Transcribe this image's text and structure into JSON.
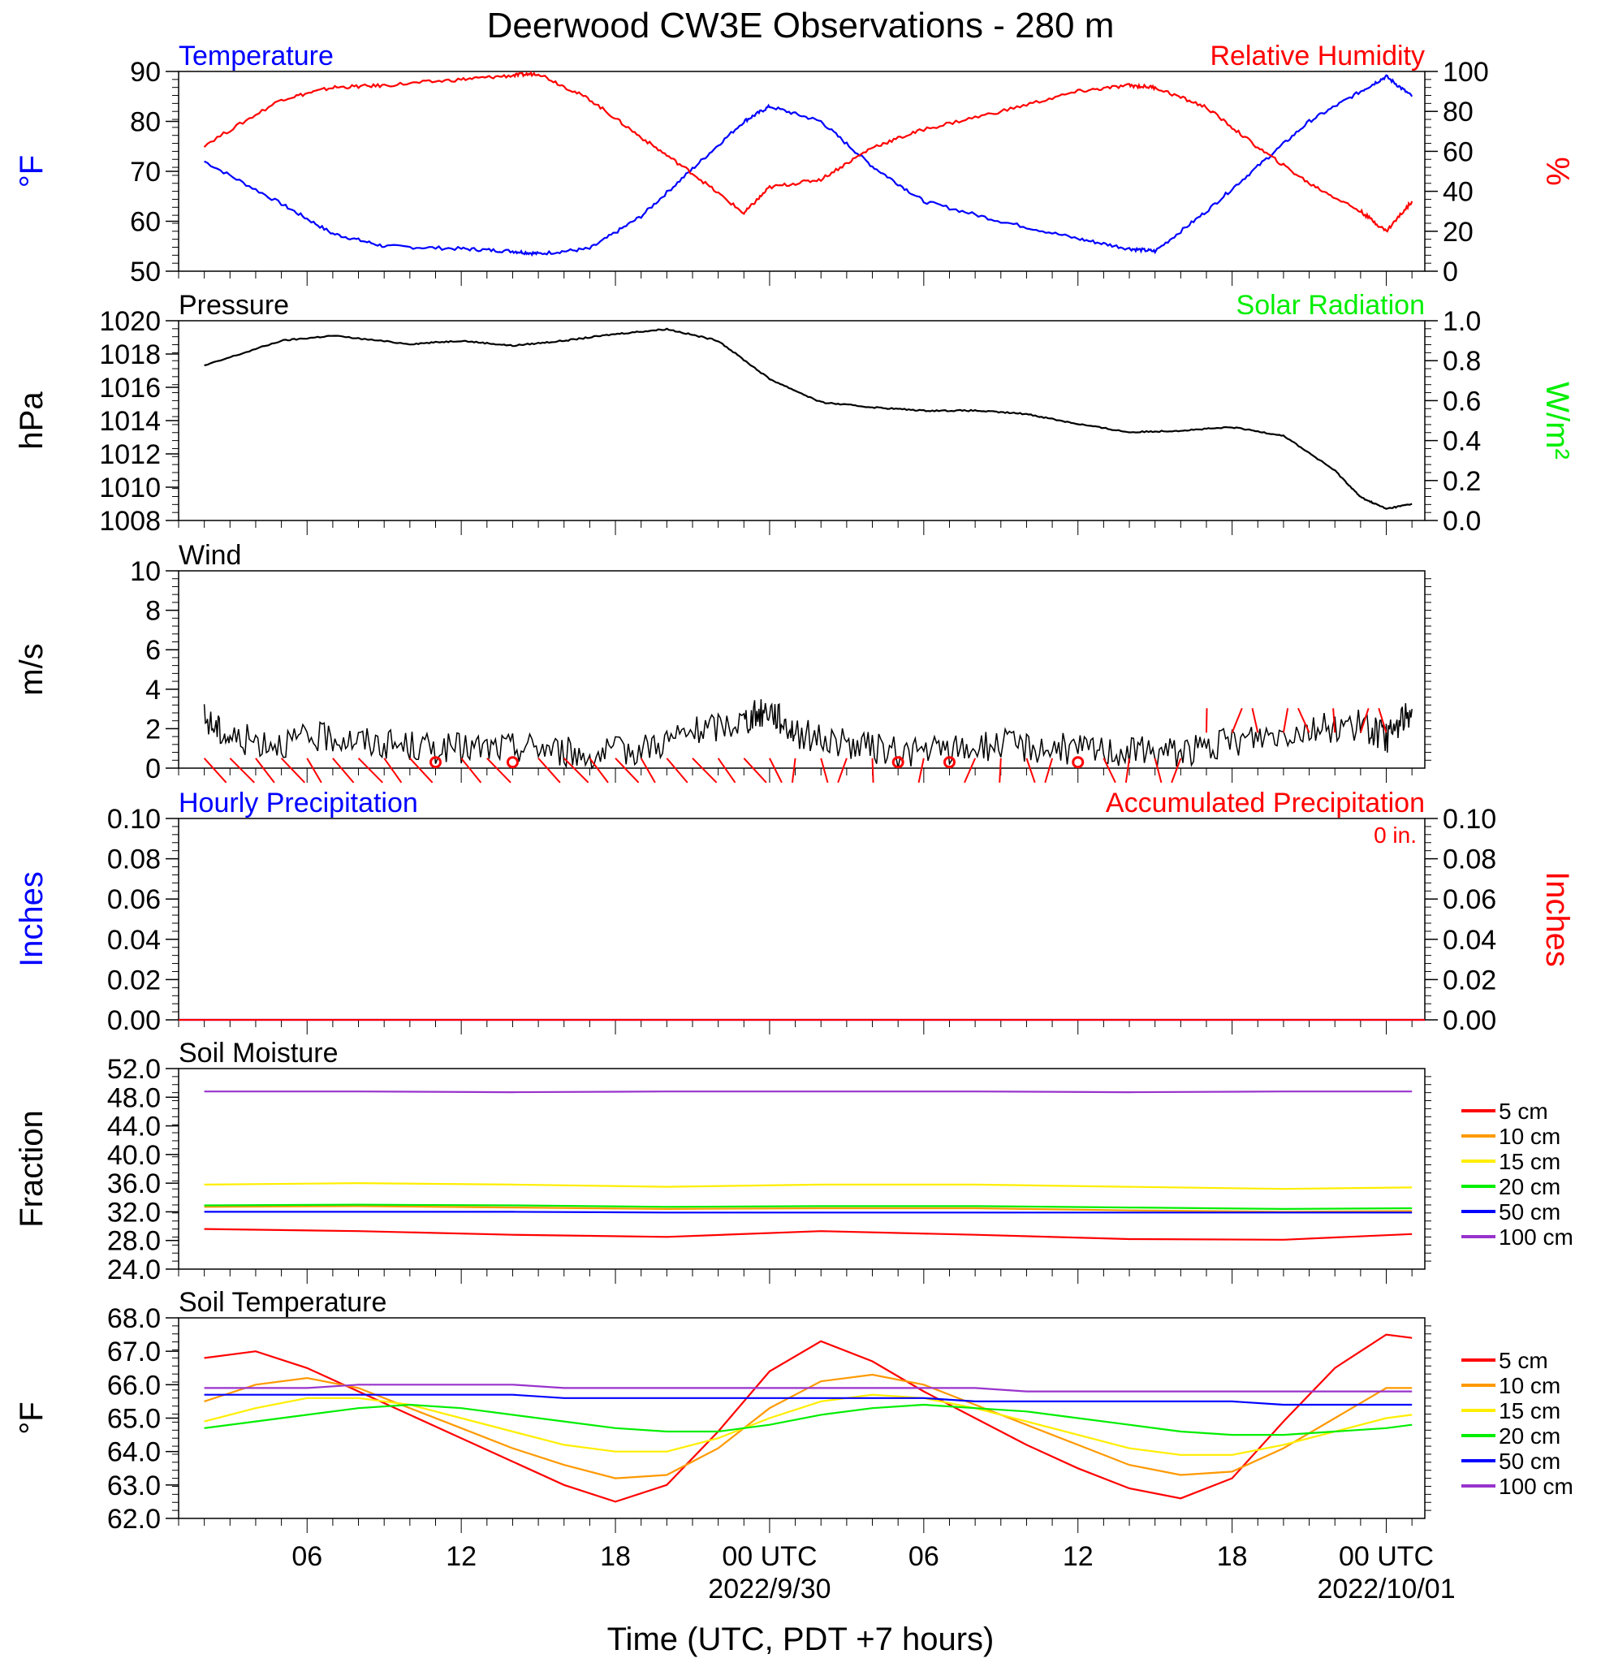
{
  "title": "Deerwood CW3E Observations - 280 m",
  "xlabel": "Time (UTC, PDT +7 hours)",
  "x_axis": {
    "range_hours": [
      -23,
      25.5
    ],
    "major_ticks": [
      {
        "h": -18,
        "label": "06",
        "sublabel": ""
      },
      {
        "h": -12,
        "label": "12",
        "sublabel": ""
      },
      {
        "h": -6,
        "label": "18",
        "sublabel": ""
      },
      {
        "h": 0,
        "label": "00 UTC",
        "sublabel": "2022/9/30"
      },
      {
        "h": 6,
        "label": "06",
        "sublabel": ""
      },
      {
        "h": 12,
        "label": "12",
        "sublabel": ""
      },
      {
        "h": 18,
        "label": "18",
        "sublabel": ""
      },
      {
        "h": 24,
        "label": "00 UTC",
        "sublabel": "2022/10/01"
      }
    ]
  },
  "colors": {
    "blue": "#0000ff",
    "red": "#ff0000",
    "green": "#00ee00",
    "black": "#000000",
    "orange": "#ff9900",
    "yellow": "#ffee00",
    "purple": "#9933cc"
  },
  "chart_data": [
    {
      "type": "line",
      "id": "temp_rh",
      "title_left": "Temperature",
      "title_right": "Relative Humidity",
      "ylabel": "°F",
      "ylabel_right": "%",
      "ylim": [
        50,
        90
      ],
      "ylim_right": [
        0,
        100
      ],
      "yticks": [
        "50",
        "60",
        "70",
        "80",
        "90"
      ],
      "yticks_right": [
        "0",
        "20",
        "40",
        "60",
        "80",
        "100"
      ],
      "x": [
        -22,
        -19,
        -17,
        -15,
        -12,
        -10,
        -9,
        -7,
        -5,
        -3,
        -1,
        0,
        2,
        4,
        6,
        9,
        12,
        14,
        15,
        17,
        19,
        21,
        23,
        24,
        25
      ],
      "series": [
        {
          "name": "Temperature",
          "color": "#0000ff",
          "axis": "left",
          "values": [
            72,
            63.5,
            57.5,
            55,
            54.5,
            54,
            53.5,
            54.5,
            61,
            70.5,
            80,
            83,
            80,
            71,
            64,
            60,
            56.5,
            54.5,
            54,
            62,
            71,
            80,
            86,
            89,
            85
          ]
        },
        {
          "name": "Relative Humidity",
          "color": "#ff0000",
          "axis": "right",
          "values": [
            63,
            86,
            92,
            93,
            96,
            98,
            99,
            86,
            67,
            49,
            29,
            42,
            46,
            62,
            71,
            80,
            90,
            93,
            92,
            82,
            62,
            44,
            30,
            20,
            35
          ]
        }
      ]
    },
    {
      "type": "line",
      "id": "pressure",
      "title_left": "Pressure",
      "title_right": "Solar Radiation",
      "ylabel": "hPa",
      "ylabel_right": "W/m²",
      "ylim": [
        1008,
        1020
      ],
      "ylim_right": [
        0,
        1
      ],
      "yticks": [
        "1008",
        "1010",
        "1012",
        "1014",
        "1016",
        "1018",
        "1020"
      ],
      "yticks_right": [
        "0.0",
        "0.2",
        "0.4",
        "0.6",
        "0.8",
        "1.0"
      ],
      "x": [
        -22,
        -19,
        -17,
        -14,
        -12,
        -10,
        -8,
        -6,
        -4,
        -2,
        0,
        2,
        4,
        6,
        8,
        10,
        12,
        14,
        16,
        18,
        20,
        22,
        23,
        24,
        25
      ],
      "series": [
        {
          "name": "Pressure",
          "color": "#000000",
          "axis": "left",
          "values": [
            1017.3,
            1018.8,
            1019.1,
            1018.6,
            1018.8,
            1018.5,
            1018.8,
            1019.2,
            1019.5,
            1018.8,
            1016.5,
            1015.1,
            1014.8,
            1014.6,
            1014.6,
            1014.4,
            1013.8,
            1013.3,
            1013.4,
            1013.6,
            1013.1,
            1011.0,
            1009.4,
            1008.7,
            1009.0
          ]
        }
      ]
    },
    {
      "type": "line",
      "id": "wind",
      "title_left": "Wind",
      "ylabel": "m/s",
      "ylim": [
        0,
        10
      ],
      "yticks": [
        "0",
        "2",
        "4",
        "6",
        "8",
        "10"
      ],
      "x": [
        -22,
        -21,
        -19,
        -17,
        -15,
        -13,
        -11,
        -9,
        -7,
        -5,
        -3,
        -1,
        0,
        1,
        3,
        5,
        7,
        9,
        11,
        13,
        15,
        17,
        19,
        21,
        23,
        24,
        25
      ],
      "series": [
        {
          "name": "Wind speed",
          "color": "#000000",
          "axis": "left",
          "values": [
            2.5,
            1.5,
            1.3,
            1.6,
            1.2,
            1.0,
            1.0,
            1.1,
            0.6,
            1.0,
            1.8,
            2.4,
            3.0,
            1.8,
            1.2,
            0.8,
            0.9,
            1.2,
            1.0,
            0.9,
            0.8,
            1.0,
            1.6,
            2.0,
            2.2,
            1.5,
            3.0
          ]
        }
      ]
    },
    {
      "type": "line",
      "id": "precip",
      "title_left": "Hourly Precipitation",
      "title_right": "Accumulated Precipitation",
      "annotation": "0 in.",
      "ylabel": "Inches",
      "ylabel_right": "Inches",
      "ylim": [
        0,
        0.1
      ],
      "ylim_right": [
        0,
        0.1
      ],
      "yticks": [
        "0.00",
        "0.02",
        "0.04",
        "0.06",
        "0.08",
        "0.10"
      ],
      "yticks_right": [
        "0.00",
        "0.02",
        "0.04",
        "0.06",
        "0.08",
        "0.10"
      ],
      "x": [
        -23,
        25.5
      ],
      "series": [
        {
          "name": "Hourly Precipitation",
          "color": "#0000ff",
          "axis": "left",
          "values": [
            0,
            0
          ]
        },
        {
          "name": "Accumulated Precipitation",
          "color": "#ff0000",
          "axis": "right",
          "values": [
            0,
            0
          ]
        }
      ]
    },
    {
      "type": "line",
      "id": "soil_moisture",
      "title_left": "Soil Moisture",
      "ylabel": "Fraction",
      "ylim": [
        24,
        52
      ],
      "yticks": [
        "24.0",
        "28.0",
        "32.0",
        "36.0",
        "40.0",
        "44.0",
        "48.0",
        "52.0"
      ],
      "x": [
        -22,
        -16,
        -10,
        -4,
        2,
        8,
        14,
        20,
        25
      ],
      "series": [
        {
          "name": "5 cm",
          "color": "#ff0000",
          "values": [
            29.6,
            29.3,
            28.8,
            28.5,
            29.3,
            28.8,
            28.2,
            28.1,
            28.9
          ]
        },
        {
          "name": "10 cm",
          "color": "#ff9900",
          "values": [
            32.7,
            32.8,
            32.6,
            32.4,
            32.5,
            32.5,
            32.2,
            32.0,
            32.1
          ]
        },
        {
          "name": "15 cm",
          "color": "#ffee00",
          "values": [
            35.8,
            36.0,
            35.8,
            35.5,
            35.8,
            35.8,
            35.5,
            35.2,
            35.4
          ]
        },
        {
          "name": "20 cm",
          "color": "#00ee00",
          "values": [
            32.9,
            33.0,
            32.9,
            32.7,
            32.8,
            32.8,
            32.6,
            32.4,
            32.5
          ]
        },
        {
          "name": "50 cm",
          "color": "#0000ff",
          "values": [
            32.0,
            32.0,
            32.0,
            31.9,
            31.9,
            31.9,
            31.9,
            31.9,
            31.9
          ]
        },
        {
          "name": "100 cm",
          "color": "#9933cc",
          "values": [
            48.8,
            48.8,
            48.7,
            48.8,
            48.8,
            48.8,
            48.7,
            48.8,
            48.8
          ]
        }
      ]
    },
    {
      "type": "line",
      "id": "soil_temp",
      "title_left": "Soil Temperature",
      "ylabel": "°F",
      "ylim": [
        62,
        68
      ],
      "yticks": [
        "62.0",
        "63.0",
        "64.0",
        "65.0",
        "66.0",
        "67.0",
        "68.0"
      ],
      "x": [
        -22,
        -20,
        -18,
        -16,
        -14,
        -12,
        -10,
        -8,
        -6,
        -4,
        -2,
        0,
        2,
        4,
        6,
        8,
        10,
        12,
        14,
        16,
        18,
        20,
        22,
        24,
        25
      ],
      "series": [
        {
          "name": "5 cm",
          "color": "#ff0000",
          "values": [
            66.8,
            67.0,
            66.5,
            65.8,
            65.1,
            64.4,
            63.7,
            63.0,
            62.5,
            63.0,
            64.6,
            66.4,
            67.3,
            66.7,
            65.8,
            65.0,
            64.2,
            63.5,
            62.9,
            62.6,
            63.2,
            64.9,
            66.5,
            67.5,
            67.4
          ]
        },
        {
          "name": "10 cm",
          "color": "#ff9900",
          "values": [
            65.5,
            66.0,
            66.2,
            65.9,
            65.3,
            64.7,
            64.1,
            63.6,
            63.2,
            63.3,
            64.1,
            65.3,
            66.1,
            66.3,
            66.0,
            65.4,
            64.8,
            64.2,
            63.6,
            63.3,
            63.4,
            64.1,
            65.0,
            65.9,
            65.9
          ]
        },
        {
          "name": "15 cm",
          "color": "#ffee00",
          "values": [
            64.9,
            65.3,
            65.6,
            65.6,
            65.4,
            65.0,
            64.6,
            64.2,
            64.0,
            64.0,
            64.4,
            65.0,
            65.5,
            65.7,
            65.6,
            65.3,
            64.9,
            64.5,
            64.1,
            63.9,
            63.9,
            64.2,
            64.6,
            65.0,
            65.1
          ]
        },
        {
          "name": "20 cm",
          "color": "#00ee00",
          "values": [
            64.7,
            64.9,
            65.1,
            65.3,
            65.4,
            65.3,
            65.1,
            64.9,
            64.7,
            64.6,
            64.6,
            64.8,
            65.1,
            65.3,
            65.4,
            65.3,
            65.2,
            65.0,
            64.8,
            64.6,
            64.5,
            64.5,
            64.6,
            64.7,
            64.8
          ]
        },
        {
          "name": "50 cm",
          "color": "#0000ff",
          "values": [
            65.7,
            65.7,
            65.7,
            65.7,
            65.7,
            65.7,
            65.7,
            65.6,
            65.6,
            65.6,
            65.6,
            65.6,
            65.6,
            65.6,
            65.6,
            65.5,
            65.5,
            65.5,
            65.5,
            65.5,
            65.5,
            65.4,
            65.4,
            65.4,
            65.4
          ]
        },
        {
          "name": "100 cm",
          "color": "#9933cc",
          "values": [
            65.9,
            65.9,
            65.9,
            66.0,
            66.0,
            66.0,
            66.0,
            65.9,
            65.9,
            65.9,
            65.9,
            65.9,
            65.9,
            65.9,
            65.9,
            65.9,
            65.8,
            65.8,
            65.8,
            65.8,
            65.8,
            65.8,
            65.8,
            65.8,
            65.8
          ]
        }
      ]
    }
  ]
}
